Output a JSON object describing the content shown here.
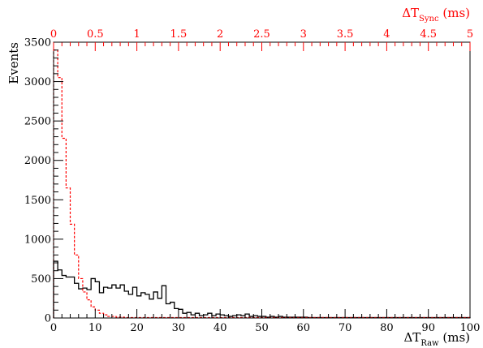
{
  "chart_data": {
    "type": "histogram",
    "ylabel": "Events",
    "xlabel": {
      "main": "ΔT",
      "sub": "Raw",
      "unit": "(ms)"
    },
    "x2label": {
      "main": "ΔT",
      "sub": "Sync",
      "unit": "(ms)"
    },
    "xlim": [
      0,
      100
    ],
    "x2lim": [
      0,
      5
    ],
    "ylim": [
      0,
      3500
    ],
    "x_ticks": [
      "0",
      "10",
      "20",
      "30",
      "40",
      "50",
      "60",
      "70",
      "80",
      "90",
      "100"
    ],
    "x2_ticks": [
      "0",
      "0.5",
      "1",
      "1.5",
      "2",
      "2.5",
      "3",
      "3.5",
      "4",
      "4.5",
      "5"
    ],
    "y_ticks": [
      "0",
      "500",
      "1000",
      "1500",
      "2000",
      "2500",
      "3000",
      "3500"
    ],
    "grid": false,
    "colors": {
      "raw": "#000000",
      "sync": "#ff0000",
      "x2_axis": "#ff0000"
    },
    "series": [
      {
        "key": "raw",
        "style": "solid step",
        "bin_width": 1,
        "x_axis": "bottom",
        "values": [
          720,
          610,
          540,
          520,
          520,
          440,
          370,
          380,
          360,
          500,
          460,
          320,
          390,
          380,
          420,
          380,
          420,
          340,
          300,
          390,
          280,
          320,
          300,
          240,
          330,
          250,
          410,
          180,
          200,
          120,
          110,
          60,
          70,
          40,
          60,
          30,
          40,
          60,
          30,
          50,
          40,
          30,
          20,
          30,
          40,
          30,
          50,
          20,
          30,
          20,
          20,
          10,
          20,
          10,
          20,
          10,
          10,
          10,
          10,
          10,
          10,
          5,
          5,
          5,
          5,
          5,
          5,
          5,
          5,
          5,
          5,
          5,
          5,
          5,
          5,
          5,
          5,
          5,
          5,
          5,
          5,
          5,
          5,
          5,
          5,
          5,
          5,
          5,
          5,
          5,
          5,
          5,
          5,
          5,
          5,
          5,
          5,
          5,
          5,
          5
        ]
      },
      {
        "key": "sync",
        "style": "dashed step",
        "bin_width": 0.05,
        "x_axis": "top",
        "values": [
          3400,
          3050,
          2280,
          1650,
          1190,
          800,
          500,
          330,
          230,
          140,
          100,
          60,
          40,
          20,
          20,
          10,
          10,
          5,
          5,
          5,
          5,
          5,
          5,
          5,
          5,
          5,
          5,
          5,
          5,
          5,
          5,
          5,
          5,
          5,
          5,
          5,
          5,
          5,
          5,
          5,
          5,
          5,
          5,
          5,
          5,
          5,
          5,
          5,
          5,
          5,
          5,
          5,
          5,
          5,
          5,
          5,
          5,
          5,
          5,
          5,
          5,
          5,
          5,
          5,
          5,
          5,
          5,
          5,
          5,
          5,
          5,
          5,
          5,
          5,
          5,
          5,
          5,
          5,
          5,
          5,
          5,
          5,
          5,
          5,
          5,
          5,
          5,
          5,
          5,
          5,
          5,
          5,
          5,
          5,
          5,
          5,
          5,
          5,
          5,
          5
        ]
      }
    ]
  }
}
